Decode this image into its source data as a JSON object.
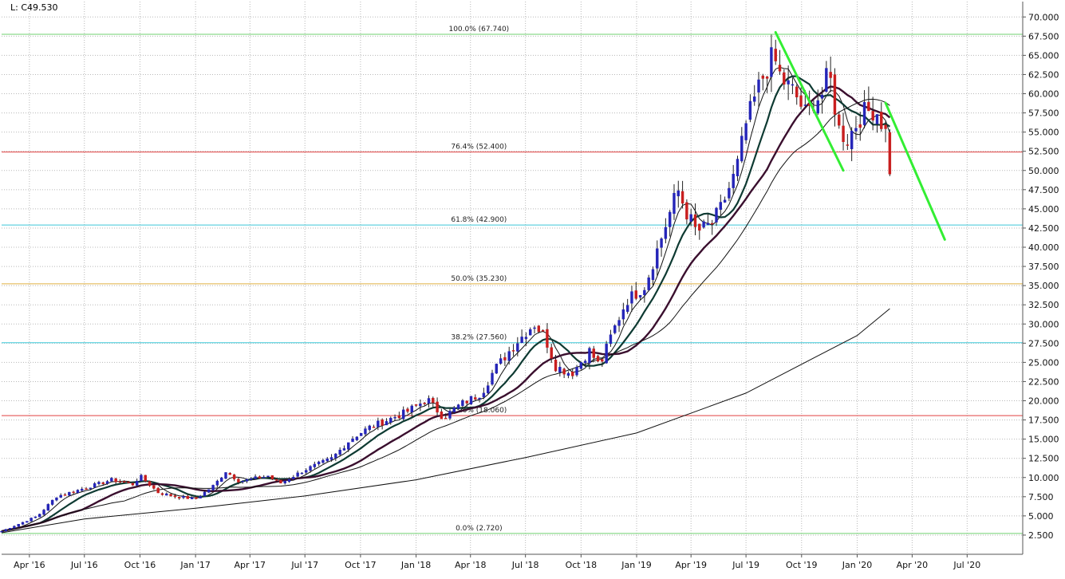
{
  "header": {
    "last_label": "L: C49.530"
  },
  "chart_data": {
    "type": "candlestick",
    "grid": true,
    "y_axis_side": "right",
    "ylim": [
      0,
      72
    ],
    "yticks": [
      2.5,
      5,
      7.5,
      10,
      12.5,
      15,
      17.5,
      20,
      22.5,
      25,
      27.5,
      30,
      32.5,
      35,
      37.5,
      40,
      42.5,
      45,
      47.5,
      50,
      52.5,
      55,
      57.5,
      60,
      62.5,
      65,
      67.5,
      70
    ],
    "ytick_labels": [
      "2.500",
      "5.000",
      "7.500",
      "10.000",
      "12.500",
      "15.000",
      "17.500",
      "20.000",
      "22.500",
      "25.000",
      "27.500",
      "30.000",
      "32.500",
      "35.000",
      "37.500",
      "40.000",
      "42.500",
      "45.000",
      "47.500",
      "50.000",
      "52.500",
      "55.000",
      "57.500",
      "60.000",
      "62.500",
      "65.000",
      "67.500",
      "70.000"
    ],
    "x_start": "2016-02-15",
    "xlim": [
      "2016-02-15",
      "2020-10-01"
    ],
    "xticks": [
      {
        "date": "2016-04-01",
        "label": "Apr '16"
      },
      {
        "date": "2016-07-01",
        "label": "Jul '16"
      },
      {
        "date": "2016-10-01",
        "label": "Oct '16"
      },
      {
        "date": "2017-01-01",
        "label": "Jan '17"
      },
      {
        "date": "2017-04-01",
        "label": "Apr '17"
      },
      {
        "date": "2017-07-01",
        "label": "Jul '17"
      },
      {
        "date": "2017-10-01",
        "label": "Oct '17"
      },
      {
        "date": "2018-01-01",
        "label": "Jan '18"
      },
      {
        "date": "2018-04-01",
        "label": "Apr '18"
      },
      {
        "date": "2018-07-01",
        "label": "Jul '18"
      },
      {
        "date": "2018-10-01",
        "label": "Oct '18"
      },
      {
        "date": "2019-01-01",
        "label": "Jan '19"
      },
      {
        "date": "2019-04-01",
        "label": "Apr '19"
      },
      {
        "date": "2019-07-01",
        "label": "Jul '19"
      },
      {
        "date": "2019-10-01",
        "label": "Oct '19"
      },
      {
        "date": "2020-01-01",
        "label": "Jan '20"
      },
      {
        "date": "2020-04-01",
        "label": "Apr '20"
      },
      {
        "date": "2020-07-01",
        "label": "Jul '20"
      }
    ],
    "fib_levels": [
      {
        "value": 67.74,
        "label": "100.0% (67.740)",
        "color": "#6fd16f"
      },
      {
        "value": 52.4,
        "label": "76.4% (52.400)",
        "color": "#e04040"
      },
      {
        "value": 42.9,
        "label": "61.8% (42.900)",
        "color": "#3cc8d8"
      },
      {
        "value": 35.23,
        "label": "50.0% (35.230)",
        "color": "#e0b040"
      },
      {
        "value": 27.56,
        "label": "38.2% (27.560)",
        "color": "#3cc8d8"
      },
      {
        "value": 18.06,
        "label": "23.6% (18.060)",
        "color": "#e04040"
      },
      {
        "value": 2.72,
        "label": "0.0% (2.720)",
        "color": "#6fd16f"
      }
    ],
    "fib_label_date": "2018-04-15",
    "colors": {
      "up": "#2525b8",
      "down": "#c81e1e",
      "trendline": "#33ee33",
      "ma_fast": "#111111",
      "ma_mid": "#0e3a32",
      "ma_slow": "#3a0f2e",
      "ma_long": "#111111"
    },
    "trendlines": [
      {
        "from": [
          "2019-08-19",
          68.0
        ],
        "to": [
          "2019-12-09",
          50.0
        ]
      },
      {
        "from": [
          "2020-02-17",
          58.8
        ],
        "to": [
          "2020-05-25",
          41.0
        ]
      }
    ],
    "anchors": [
      [
        "2016-02-15",
        3.0
      ],
      [
        "2016-04-15",
        5.0
      ],
      [
        "2016-05-15",
        7.5
      ],
      [
        "2016-07-01",
        8.6
      ],
      [
        "2016-08-15",
        9.7
      ],
      [
        "2016-09-20",
        9.1
      ],
      [
        "2016-10-01",
        10.2
      ],
      [
        "2016-11-01",
        8.0
      ],
      [
        "2016-12-01",
        7.5
      ],
      [
        "2017-01-01",
        7.2
      ],
      [
        "2017-02-01",
        9.0
      ],
      [
        "2017-02-20",
        10.8
      ],
      [
        "2017-03-15",
        9.5
      ],
      [
        "2017-05-01",
        10.2
      ],
      [
        "2017-05-20",
        9.2
      ],
      [
        "2017-07-01",
        11.0
      ],
      [
        "2017-08-15",
        12.5
      ],
      [
        "2017-09-15",
        15.0
      ],
      [
        "2017-10-15",
        16.5
      ],
      [
        "2017-11-15",
        17.5
      ],
      [
        "2017-12-15",
        18.5
      ],
      [
        "2018-01-20",
        20.2
      ],
      [
        "2018-02-15",
        17.8
      ],
      [
        "2018-03-15",
        19.5
      ],
      [
        "2018-04-20",
        21.0
      ],
      [
        "2018-05-10",
        24.0
      ],
      [
        "2018-06-15",
        27.5
      ],
      [
        "2018-07-15",
        30.0
      ],
      [
        "2018-08-01",
        28.5
      ],
      [
        "2018-08-20",
        24.5
      ],
      [
        "2018-09-15",
        23.5
      ],
      [
        "2018-10-15",
        26.5
      ],
      [
        "2018-11-01",
        24.5
      ],
      [
        "2018-11-20",
        28.5
      ],
      [
        "2018-12-15",
        33.0
      ],
      [
        "2019-01-15",
        35.0
      ],
      [
        "2019-02-10",
        41.0
      ],
      [
        "2019-03-10",
        47.5
      ],
      [
        "2019-03-25",
        44.5
      ],
      [
        "2019-04-10",
        42.0
      ],
      [
        "2019-05-05",
        43.0
      ],
      [
        "2019-05-20",
        45.0
      ],
      [
        "2019-06-15",
        50.0
      ],
      [
        "2019-07-01",
        56.0
      ],
      [
        "2019-07-25",
        61.5
      ],
      [
        "2019-08-15",
        65.0
      ],
      [
        "2019-08-28",
        62.0
      ],
      [
        "2019-09-20",
        60.0
      ],
      [
        "2019-10-10",
        57.0
      ],
      [
        "2019-10-20",
        59.0
      ],
      [
        "2019-11-05",
        60.0
      ],
      [
        "2019-11-15",
        63.0
      ],
      [
        "2019-12-01",
        55.5
      ],
      [
        "2019-12-15",
        54.0
      ],
      [
        "2020-01-10",
        57.5
      ],
      [
        "2020-02-01",
        58.0
      ],
      [
        "2020-02-17",
        55.0
      ],
      [
        "2020-02-24",
        49.53
      ]
    ],
    "moving_averages": [
      {
        "key": "ma_fast",
        "period": 5,
        "width": 1
      },
      {
        "key": "ma_mid",
        "period": 10,
        "width": 2.2
      },
      {
        "key": "ma_slow",
        "period": 20,
        "width": 2.4
      },
      {
        "key": "ma_long",
        "period": 30,
        "width": 1
      }
    ],
    "long_ma_points": [
      [
        "2016-02-15",
        2.8
      ],
      [
        "2016-07-01",
        4.6
      ],
      [
        "2017-01-01",
        6.0
      ],
      [
        "2017-07-01",
        7.6
      ],
      [
        "2018-01-01",
        9.7
      ],
      [
        "2018-07-01",
        12.6
      ],
      [
        "2019-01-01",
        15.8
      ],
      [
        "2019-07-01",
        21.0
      ],
      [
        "2020-01-01",
        28.5
      ],
      [
        "2020-02-24",
        32.0
      ]
    ],
    "last_close": 49.53
  }
}
